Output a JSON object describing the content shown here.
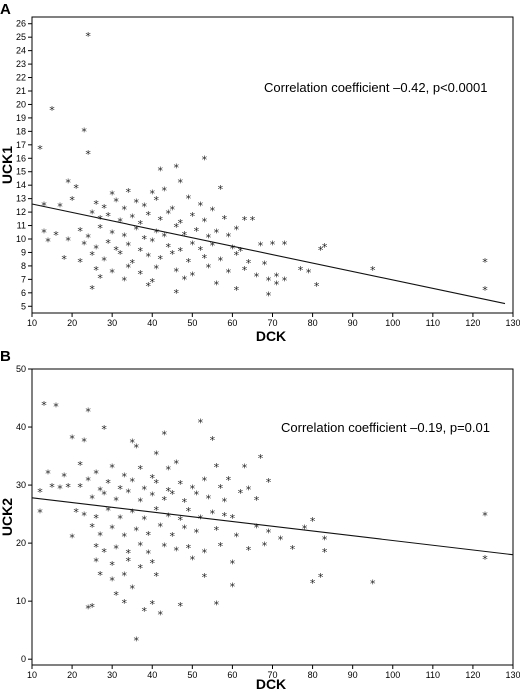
{
  "chart_data": [
    {
      "panel_label": "A",
      "type": "scatter",
      "xlabel": "DCK",
      "ylabel": "UCK1",
      "annotation": "Correlation coefficient –0.42, p<0.0001",
      "xlim": [
        10,
        130
      ],
      "ylim": [
        4.5,
        26.5
      ],
      "x_ticks": [
        10,
        20,
        30,
        40,
        50,
        60,
        70,
        80,
        90,
        100,
        110,
        120,
        130
      ],
      "y_ticks": [
        5,
        6,
        7,
        8,
        9,
        10,
        11,
        12,
        13,
        14,
        15,
        16,
        17,
        18,
        19,
        20,
        21,
        22,
        23,
        24,
        25,
        26
      ],
      "marker": "*",
      "points": [
        [
          24,
          25.1
        ],
        [
          15,
          19.6
        ],
        [
          23,
          18
        ],
        [
          12,
          16.7
        ],
        [
          24,
          16.3
        ],
        [
          53,
          15.9
        ],
        [
          42,
          15.1
        ],
        [
          46,
          15.3
        ],
        [
          19,
          14.2
        ],
        [
          21,
          13.8
        ],
        [
          30,
          13.3
        ],
        [
          34,
          13.5
        ],
        [
          40,
          13.4
        ],
        [
          43,
          13.6
        ],
        [
          47,
          14.2
        ],
        [
          57,
          13.7
        ],
        [
          13,
          12.5
        ],
        [
          17,
          12.4
        ],
        [
          20,
          12.9
        ],
        [
          26,
          12.6
        ],
        [
          28,
          12.3
        ],
        [
          31,
          12.8
        ],
        [
          33,
          12.2
        ],
        [
          36,
          12.7
        ],
        [
          38,
          12.4
        ],
        [
          41,
          12.9
        ],
        [
          45,
          12.2
        ],
        [
          49,
          13
        ],
        [
          52,
          12.5
        ],
        [
          55,
          12.1
        ],
        [
          25,
          11.9
        ],
        [
          27,
          11.5
        ],
        [
          29,
          11.7
        ],
        [
          32,
          11.3
        ],
        [
          35,
          11.6
        ],
        [
          37,
          11.1
        ],
        [
          39,
          11.8
        ],
        [
          42,
          11.4
        ],
        [
          44,
          11.9
        ],
        [
          47,
          11.2
        ],
        [
          50,
          11.7
        ],
        [
          53,
          11.3
        ],
        [
          58,
          11.5
        ],
        [
          63,
          11.4
        ],
        [
          65,
          11.4
        ],
        [
          13,
          10.5
        ],
        [
          16,
          10.3
        ],
        [
          22,
          10.6
        ],
        [
          24,
          10.1
        ],
        [
          27,
          10.8
        ],
        [
          30,
          10.4
        ],
        [
          33,
          10.2
        ],
        [
          36,
          10.7
        ],
        [
          38,
          10
        ],
        [
          41,
          10.5
        ],
        [
          43,
          10.2
        ],
        [
          46,
          10.9
        ],
        [
          48,
          10.3
        ],
        [
          51,
          10.6
        ],
        [
          54,
          10.1
        ],
        [
          56,
          10.5
        ],
        [
          59,
          10.2
        ],
        [
          61,
          10.7
        ],
        [
          14,
          9.8
        ],
        [
          19,
          9.9
        ],
        [
          23,
          9.6
        ],
        [
          26,
          9.3
        ],
        [
          29,
          9.7
        ],
        [
          31,
          9.2
        ],
        [
          34,
          9.5
        ],
        [
          37,
          9.1
        ],
        [
          40,
          9.8
        ],
        [
          44,
          9.4
        ],
        [
          47,
          9.1
        ],
        [
          50,
          9.6
        ],
        [
          52,
          9.2
        ],
        [
          55,
          9.5
        ],
        [
          60,
          9.3
        ],
        [
          62,
          9.1
        ],
        [
          67,
          9.5
        ],
        [
          70,
          9.6
        ],
        [
          73,
          9.6
        ],
        [
          82,
          9.2
        ],
        [
          83,
          9.4
        ],
        [
          18,
          8.5
        ],
        [
          22,
          8.3
        ],
        [
          25,
          8.8
        ],
        [
          28,
          8.4
        ],
        [
          32,
          8.9
        ],
        [
          35,
          8.2
        ],
        [
          39,
          8.7
        ],
        [
          42,
          8.5
        ],
        [
          45,
          8.9
        ],
        [
          49,
          8.3
        ],
        [
          53,
          8.6
        ],
        [
          57,
          8.4
        ],
        [
          61,
          8.8
        ],
        [
          64,
          8.2
        ],
        [
          68,
          8.1
        ],
        [
          123,
          8.3
        ],
        [
          26,
          7.7
        ],
        [
          30,
          7.5
        ],
        [
          34,
          7.9
        ],
        [
          37,
          7.4
        ],
        [
          41,
          7.8
        ],
        [
          46,
          7.6
        ],
        [
          50,
          7.3
        ],
        [
          54,
          7.9
        ],
        [
          59,
          7.5
        ],
        [
          63,
          7.7
        ],
        [
          66,
          7.2
        ],
        [
          71,
          7.2
        ],
        [
          77,
          7.7
        ],
        [
          79,
          7.5
        ],
        [
          95,
          7.7
        ],
        [
          27,
          7.1
        ],
        [
          33,
          6.9
        ],
        [
          40,
          6.8
        ],
        [
          48,
          7
        ],
        [
          56,
          6.6
        ],
        [
          69,
          6.9
        ],
        [
          71,
          6.6
        ],
        [
          73,
          6.9
        ],
        [
          25,
          6.3
        ],
        [
          39,
          6.5
        ],
        [
          46,
          6
        ],
        [
          61,
          6.2
        ],
        [
          69,
          5.8
        ],
        [
          81,
          6.5
        ],
        [
          123,
          6.2
        ]
      ],
      "fit": [
        [
          10,
          12.6
        ],
        [
          128,
          5.2
        ]
      ]
    },
    {
      "panel_label": "B",
      "type": "scatter",
      "xlabel": "DCK",
      "ylabel": "UCK2",
      "annotation": "Correlation coefficient –0.19, p=0.01",
      "xlim": [
        10,
        130
      ],
      "ylim": [
        -1,
        50
      ],
      "x_ticks": [
        10,
        20,
        30,
        40,
        50,
        60,
        70,
        80,
        90,
        100,
        110,
        120,
        130
      ],
      "y_ticks": [
        0,
        10,
        20,
        30,
        40,
        50
      ],
      "marker": "*",
      "points": [
        [
          13,
          43.8
        ],
        [
          16,
          43.5
        ],
        [
          24,
          42.7
        ],
        [
          52,
          40.8
        ],
        [
          20,
          38
        ],
        [
          23,
          37.5
        ],
        [
          28,
          39.7
        ],
        [
          35,
          37.3
        ],
        [
          43,
          38.7
        ],
        [
          36,
          36.5
        ],
        [
          41,
          35.3
        ],
        [
          55,
          37.8
        ],
        [
          14,
          32
        ],
        [
          18,
          31.5
        ],
        [
          22,
          33.5
        ],
        [
          26,
          32
        ],
        [
          30,
          33
        ],
        [
          33,
          31.5
        ],
        [
          37,
          32.8
        ],
        [
          40,
          31.2
        ],
        [
          44,
          32.7
        ],
        [
          46,
          33.7
        ],
        [
          56,
          33.1
        ],
        [
          63,
          33
        ],
        [
          67,
          34.7
        ],
        [
          22,
          29.7
        ],
        [
          24,
          30.8
        ],
        [
          27,
          29.1
        ],
        [
          29,
          30.4
        ],
        [
          32,
          29.3
        ],
        [
          35,
          30.6
        ],
        [
          38,
          29.2
        ],
        [
          41,
          30.4
        ],
        [
          44,
          29
        ],
        [
          47,
          30.2
        ],
        [
          50,
          29.4
        ],
        [
          53,
          30.8
        ],
        [
          57,
          29.5
        ],
        [
          59,
          30.9
        ],
        [
          64,
          29.2
        ],
        [
          69,
          30.5
        ],
        [
          12,
          28.8
        ],
        [
          15,
          29.7
        ],
        [
          17,
          29.4
        ],
        [
          19,
          29.7
        ],
        [
          25,
          27.7
        ],
        [
          28,
          28.4
        ],
        [
          31,
          27.3
        ],
        [
          34,
          28.7
        ],
        [
          37,
          27.2
        ],
        [
          40,
          28.2
        ],
        [
          43,
          27.4
        ],
        [
          45,
          28.5
        ],
        [
          48,
          27.1
        ],
        [
          51,
          28.4
        ],
        [
          54,
          27.7
        ],
        [
          58,
          27.2
        ],
        [
          62,
          28.6
        ],
        [
          66,
          27.4
        ],
        [
          12,
          25.3
        ],
        [
          21,
          25.4
        ],
        [
          23,
          24.8
        ],
        [
          26,
          24.3
        ],
        [
          29,
          25.6
        ],
        [
          32,
          24.2
        ],
        [
          35,
          25.3
        ],
        [
          38,
          24.1
        ],
        [
          41,
          25.7
        ],
        [
          44,
          24.6
        ],
        [
          47,
          24
        ],
        [
          49,
          25.5
        ],
        [
          52,
          24.2
        ],
        [
          55,
          25.1
        ],
        [
          58,
          24.7
        ],
        [
          60,
          24.3
        ],
        [
          123,
          24.8
        ],
        [
          20,
          21
        ],
        [
          25,
          22.8
        ],
        [
          27,
          21.3
        ],
        [
          30,
          22.5
        ],
        [
          33,
          21.1
        ],
        [
          36,
          22.2
        ],
        [
          39,
          21.4
        ],
        [
          42,
          22.9
        ],
        [
          45,
          21.2
        ],
        [
          48,
          22.5
        ],
        [
          51,
          21.8
        ],
        [
          56,
          22.3
        ],
        [
          61,
          21.1
        ],
        [
          66,
          22.7
        ],
        [
          69,
          21.8
        ],
        [
          72,
          20.6
        ],
        [
          78,
          22.5
        ],
        [
          80,
          23.8
        ],
        [
          83,
          20.6
        ],
        [
          26,
          19.3
        ],
        [
          28,
          18.5
        ],
        [
          31,
          19.1
        ],
        [
          34,
          18.3
        ],
        [
          37,
          19.6
        ],
        [
          39,
          18.2
        ],
        [
          43,
          19.4
        ],
        [
          46,
          18.7
        ],
        [
          49,
          19.2
        ],
        [
          53,
          18.4
        ],
        [
          57,
          19.5
        ],
        [
          64,
          18.8
        ],
        [
          68,
          19.6
        ],
        [
          75,
          19
        ],
        [
          83,
          18.5
        ],
        [
          26,
          16.8
        ],
        [
          30,
          16.2
        ],
        [
          34,
          16.9
        ],
        [
          37,
          15.7
        ],
        [
          40,
          16.6
        ],
        [
          50,
          17.2
        ],
        [
          60,
          16.5
        ],
        [
          123,
          17.3
        ],
        [
          27,
          14.5
        ],
        [
          30,
          13.6
        ],
        [
          33,
          14.4
        ],
        [
          41,
          14.3
        ],
        [
          53,
          14.2
        ],
        [
          60,
          12.5
        ],
        [
          80,
          13.1
        ],
        [
          82,
          14.2
        ],
        [
          95,
          13
        ],
        [
          35,
          12.2
        ],
        [
          31,
          11.1
        ],
        [
          25,
          9
        ],
        [
          33,
          9.7
        ],
        [
          40,
          9.5
        ],
        [
          47,
          9.2
        ],
        [
          56,
          9.4
        ],
        [
          24,
          8.7
        ],
        [
          38,
          8.3
        ],
        [
          42,
          7.7
        ],
        [
          36,
          3.2
        ]
      ],
      "fit": [
        [
          10,
          27.8
        ],
        [
          130,
          18
        ]
      ]
    }
  ]
}
